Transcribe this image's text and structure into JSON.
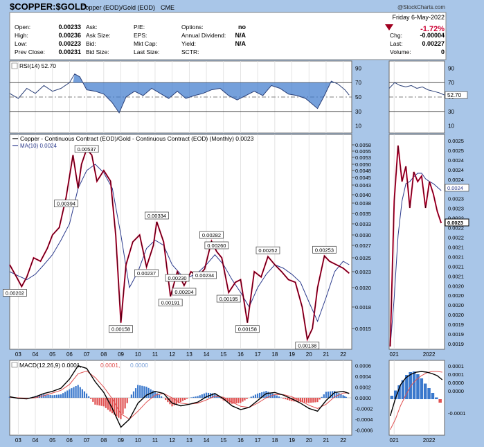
{
  "header": {
    "symbol": "$COPPER:$GOLD",
    "name": "Copper (EOD)/Gold (EOD)",
    "exchange": "CME",
    "watermark": "@StockCharts.com",
    "date": "Friday  6-May-2022",
    "change_pct": "-1.72%",
    "quote": [
      {
        "label": "Open:",
        "value": "0.00233"
      },
      {
        "label": "High:",
        "value": "0.00236"
      },
      {
        "label": "Low:",
        "value": "0.00223"
      },
      {
        "label": "Prev Close:",
        "value": "0.00231"
      }
    ],
    "quote2": [
      {
        "label": "Ask:",
        "value": ""
      },
      {
        "label": "Ask Size:",
        "value": ""
      },
      {
        "label": "Bid:",
        "value": ""
      },
      {
        "label": "Bid Size:",
        "value": ""
      }
    ],
    "quote3": [
      {
        "label": "P/E:",
        "value": ""
      },
      {
        "label": "EPS:",
        "value": ""
      },
      {
        "label": "Mkt Cap:",
        "value": ""
      },
      {
        "label": "Last Size:",
        "value": ""
      }
    ],
    "quote4": [
      {
        "label": "Options:",
        "value": "no"
      },
      {
        "label": "Annual Dividend:",
        "value": "N/A"
      },
      {
        "label": "Yield:",
        "value": "N/A"
      },
      {
        "label": "SCTR:",
        "value": ""
      }
    ],
    "quote5": [
      {
        "label": "Chg:",
        "value": "-0.00004"
      },
      {
        "label": "Last:",
        "value": "0.00227"
      },
      {
        "label": "Volume:",
        "value": "0"
      }
    ]
  },
  "colors": {
    "price": "#cc0033",
    "ma": "#2b3a8c",
    "rsi": "#2a3f77",
    "signal": "#e05050",
    "macd": "#000000",
    "hist_pos": "#3a78cc",
    "hist_neg": "#e05050",
    "bg": "#a9c6e8",
    "grid": "#dddddd"
  },
  "chart_data": [
    {
      "type": "line",
      "title": "RSI(14) 52.70",
      "legend": "RSI(14) 52.70",
      "ylim": [
        0,
        100
      ],
      "y_ticks": [
        "90",
        "70",
        "50",
        "30",
        "10"
      ],
      "levels": [
        70,
        30
      ],
      "x": [
        2002.5,
        2003.0,
        2003.5,
        2004.0,
        2004.5,
        2005.0,
        2005.5,
        2006.0,
        2006.3,
        2006.6,
        2007.0,
        2007.5,
        2008.0,
        2008.5,
        2008.9,
        2009.3,
        2009.8,
        2010.3,
        2010.8,
        2011.3,
        2011.8,
        2012.3,
        2012.8,
        2013.3,
        2013.8,
        2014.3,
        2014.8,
        2015.3,
        2015.8,
        2016.3,
        2016.8,
        2017.3,
        2017.8,
        2018.3,
        2018.8,
        2019.3,
        2019.8,
        2020.1,
        2020.5,
        2020.9,
        2021.3,
        2021.7,
        2022.1,
        2022.35
      ],
      "values": [
        55,
        48,
        62,
        55,
        66,
        58,
        62,
        70,
        82,
        78,
        60,
        58,
        54,
        42,
        28,
        50,
        58,
        52,
        62,
        55,
        48,
        58,
        48,
        52,
        55,
        60,
        62,
        52,
        46,
        52,
        58,
        52,
        66,
        62,
        54,
        52,
        48,
        42,
        34,
        52,
        72,
        68,
        60,
        52.7
      ]
    },
    {
      "type": "line",
      "title": "Copper - Continuous Contract (EOD)/Gold - Continuous Contract (EOD) (Monthly) 0.0023",
      "legend": [
        "Copper - Continuous Contract (EOD)/Gold - Continuous Contract (EOD) (Monthly) 0.0023",
        "MA(10) 0.0024"
      ],
      "xlim": [
        2002.5,
        2022.5
      ],
      "x_ticks": [
        "03",
        "04",
        "05",
        "06",
        "07",
        "08",
        "09",
        "10",
        "11",
        "12",
        "13",
        "14",
        "15",
        "16",
        "17",
        "18",
        "19",
        "20",
        "21",
        "22"
      ],
      "y_ticks": [
        "0.0058",
        "0.0055",
        "0.0053",
        "0.0050",
        "0.0048",
        "0.0045",
        "0.0043",
        "0.0040",
        "0.0038",
        "0.0035",
        "0.0033",
        "0.0030",
        "0.0027",
        "0.0025",
        "0.0023",
        "0.0020",
        "0.0018",
        "0.0015"
      ],
      "series": [
        {
          "name": "Copper - Continuous Contract (EOD)/Gold - Continuous Contract (EOD) (Monthly) 0.0023",
          "x": [
            2002.5,
            2002.9,
            2003.2,
            2003.5,
            2003.9,
            2004.3,
            2004.7,
            2005.0,
            2005.4,
            2005.8,
            2006.2,
            2006.5,
            2006.7,
            2007.0,
            2007.3,
            2007.6,
            2008.0,
            2008.4,
            2008.7,
            2009.0,
            2009.3,
            2009.7,
            2010.1,
            2010.5,
            2010.9,
            2011.1,
            2011.5,
            2011.9,
            2012.3,
            2012.7,
            2013.1,
            2013.5,
            2013.9,
            2014.3,
            2014.6,
            2014.9,
            2015.3,
            2015.7,
            2016.0,
            2016.4,
            2016.8,
            2017.2,
            2017.6,
            2018.0,
            2018.4,
            2018.8,
            2019.2,
            2019.6,
            2019.9,
            2020.2,
            2020.5,
            2020.9,
            2021.2,
            2021.6,
            2022.0,
            2022.35
          ],
          "values": [
            0.0024,
            0.0022,
            0.00202,
            0.0022,
            0.0025,
            0.00245,
            0.00265,
            0.003,
            0.0032,
            0.00394,
            0.00537,
            0.0042,
            0.005,
            0.0056,
            0.00537,
            0.0044,
            0.0048,
            0.0044,
            0.003,
            0.00158,
            0.0024,
            0.0028,
            0.003,
            0.00237,
            0.0027,
            0.00334,
            0.0028,
            0.00191,
            0.0023,
            0.00204,
            0.0023,
            0.0022,
            0.00234,
            0.00282,
            0.0026,
            0.0025,
            0.00195,
            0.0021,
            0.00215,
            0.00158,
            0.0023,
            0.0022,
            0.00252,
            0.0024,
            0.0023,
            0.00215,
            0.0021,
            0.0018,
            0.00138,
            0.0015,
            0.002,
            0.00253,
            0.00245,
            0.0024,
            0.00235,
            0.00227
          ]
        },
        {
          "name": "MA(10) 0.0024",
          "x": [
            2002.5,
            2003.0,
            2003.5,
            2004.0,
            2004.5,
            2005.0,
            2005.5,
            2006.0,
            2006.5,
            2007.0,
            2007.5,
            2008.0,
            2008.5,
            2009.0,
            2009.5,
            2010.0,
            2010.5,
            2011.0,
            2011.5,
            2012.0,
            2012.5,
            2013.0,
            2013.5,
            2014.0,
            2014.5,
            2015.0,
            2015.5,
            2016.0,
            2016.5,
            2017.0,
            2017.5,
            2018.0,
            2018.5,
            2019.0,
            2019.5,
            2020.0,
            2020.5,
            2021.0,
            2021.5,
            2022.0,
            2022.35
          ],
          "values": [
            0.0023,
            0.00222,
            0.00215,
            0.00225,
            0.0024,
            0.00255,
            0.00285,
            0.0033,
            0.0042,
            0.0048,
            0.005,
            0.0047,
            0.0042,
            0.003,
            0.002,
            0.0023,
            0.00265,
            0.00285,
            0.0027,
            0.0024,
            0.00225,
            0.0022,
            0.00228,
            0.0024,
            0.00255,
            0.0024,
            0.00215,
            0.00195,
            0.0018,
            0.002,
            0.00225,
            0.0024,
            0.00235,
            0.00225,
            0.0021,
            0.00185,
            0.0016,
            0.0019,
            0.0023,
            0.00245,
            0.0024
          ]
        }
      ],
      "annotations": [
        {
          "label": "0.00202",
          "x": 2002.8,
          "y": 0.00202
        },
        {
          "label": "0.00537",
          "x": 2007.0,
          "y": 0.00537
        },
        {
          "label": "0.00394",
          "x": 2005.8,
          "y": 0.00394
        },
        {
          "label": "0.00158",
          "x": 2009.0,
          "y": 0.00158
        },
        {
          "label": "0.00334",
          "x": 2011.1,
          "y": 0.00334
        },
        {
          "label": "0.00237",
          "x": 2010.5,
          "y": 0.00237
        },
        {
          "label": "0.00230",
          "x": 2012.3,
          "y": 0.0023
        },
        {
          "label": "0.00191",
          "x": 2011.9,
          "y": 0.00191
        },
        {
          "label": "0.00204",
          "x": 2012.7,
          "y": 0.00204
        },
        {
          "label": "0.00282",
          "x": 2014.3,
          "y": 0.00282
        },
        {
          "label": "0.00260",
          "x": 2014.6,
          "y": 0.0026
        },
        {
          "label": "0.00234",
          "x": 2013.9,
          "y": 0.00234
        },
        {
          "label": "0.00195",
          "x": 2015.3,
          "y": 0.00195
        },
        {
          "label": "0.00158",
          "x": 2016.4,
          "y": 0.00158
        },
        {
          "label": "0.00252",
          "x": 2017.6,
          "y": 0.00252
        },
        {
          "label": "0.00253",
          "x": 2020.9,
          "y": 0.00253
        },
        {
          "label": "0.00138",
          "x": 2019.9,
          "y": 0.00138
        }
      ]
    },
    {
      "type": "line",
      "title": "MACD(12,26,9) 0.0001, 0.0001, 0.0000",
      "legend": [
        "MACD(12,26,9) 0.0001,",
        "0.0001,",
        "0.0000"
      ],
      "ylim": [
        -0.0007,
        0.0007
      ],
      "y_ticks": [
        "0.0006",
        "0.0004",
        "0.0002",
        "0.0000",
        "-0.0002",
        "-0.0004",
        "-0.0006"
      ],
      "x": [
        2002.5,
        2003.0,
        2003.5,
        2004.0,
        2004.5,
        2005.0,
        2005.5,
        2006.0,
        2006.5,
        2007.0,
        2007.5,
        2008.0,
        2008.5,
        2009.0,
        2009.5,
        2010.0,
        2010.5,
        2011.0,
        2011.5,
        2012.0,
        2012.5,
        2013.0,
        2013.5,
        2014.0,
        2014.5,
        2015.0,
        2015.5,
        2016.0,
        2016.5,
        2017.0,
        2017.5,
        2018.0,
        2018.5,
        2019.0,
        2019.5,
        2020.0,
        2020.5,
        2021.0,
        2021.5,
        2022.0,
        2022.35
      ],
      "series": [
        {
          "name": "MACD",
          "values": [
            2e-05,
            -1e-05,
            -2e-05,
            2e-05,
            8e-05,
            0.00012,
            0.00018,
            0.00035,
            0.0006,
            0.00055,
            0.0003,
            0.0001,
            -0.0002,
            -0.00055,
            -0.0004,
            -0.0001,
            5e-05,
            0.00012,
            8e-05,
            -0.0001,
            -0.00015,
            -0.00012,
            -8e-05,
            2e-05,
            8e-05,
            -2e-05,
            -0.00015,
            -0.00022,
            -0.00018,
            -5e-05,
            8e-05,
            0.0001,
            5e-05,
            -2e-05,
            -0.0001,
            -0.0002,
            -0.00025,
            -5e-05,
            0.0001,
            0.00012,
            8e-05
          ]
        },
        {
          "name": "Signal",
          "values": [
            1e-05,
            0.0,
            -1e-05,
            0.0,
            4e-05,
            9e-05,
            0.00014,
            0.00025,
            0.00045,
            0.0005,
            0.00038,
            0.0002,
            -2e-05,
            -0.0003,
            -0.0004,
            -0.00025,
            -8e-05,
            5e-05,
            8e-05,
            0.0,
            -0.0001,
            -0.00012,
            -0.0001,
            -4e-05,
            3e-05,
            1e-05,
            -8e-05,
            -0.00016,
            -0.00018,
            -0.0001,
            0.0,
            6e-05,
            6e-05,
            2e-05,
            -5e-05,
            -0.00014,
            -0.0002,
            -0.00012,
            2e-05,
            9e-05,
            9e-05
          ]
        }
      ]
    }
  ],
  "side_charts": {
    "x_ticks": [
      "021",
      "2022"
    ],
    "rsi_value": "52.70",
    "price_ticks": [
      "0.0025",
      "0.0025",
      "0.0024",
      "0.0024",
      "0.0024",
      "0.0023",
      "0.0023",
      "0.0023",
      "0.0022",
      "0.0022",
      "0.0022",
      "0.0021",
      "0.0021",
      "0.0021",
      "0.0021",
      "0.0020",
      "0.0020",
      "0.0020",
      "0.0020",
      "0.0019",
      "0.0019",
      "0.0019"
    ],
    "price_last": "0.0023",
    "ma_last": "0.0024",
    "macd_ticks": [
      "0.0001",
      "0.0001",
      "0.0000",
      "0.0000",
      "-0.0001"
    ]
  }
}
